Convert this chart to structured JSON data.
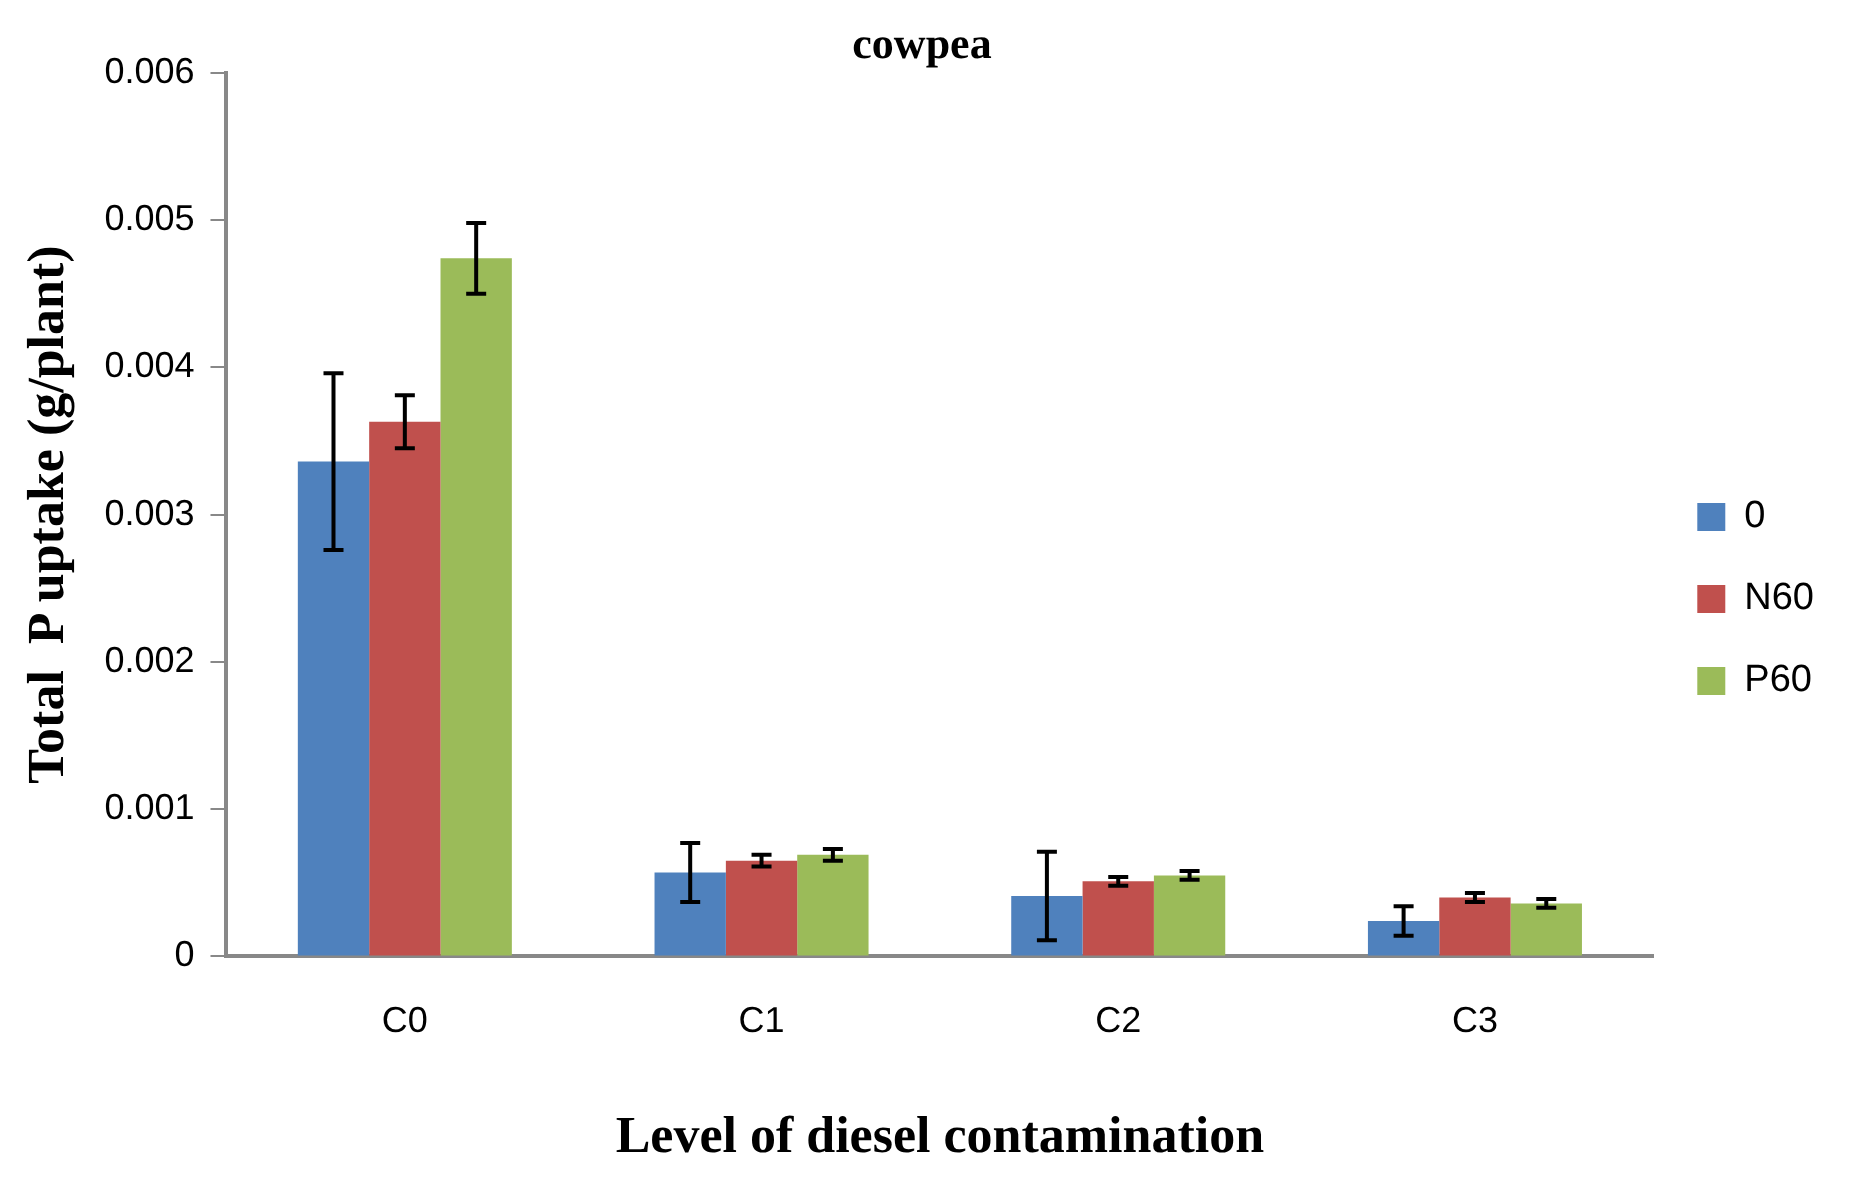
{
  "chart_data": {
    "type": "bar",
    "title": "cowpea",
    "xlabel": "Level of diesel contamination",
    "ylabel": "Total  P uptake (g/plant)",
    "categories": [
      "C0",
      "C1",
      "C2",
      "C3"
    ],
    "series": [
      {
        "name": "0",
        "color": "#4f81bd",
        "values": [
          0.00336,
          0.00057,
          0.00041,
          0.00024
        ],
        "errors": [
          0.0006,
          0.0002,
          0.0003,
          0.0001
        ]
      },
      {
        "name": "N60",
        "color": "#c0504d",
        "values": [
          0.00363,
          0.00065,
          0.00051,
          0.0004
        ],
        "errors": [
          0.00018,
          4e-05,
          3e-05,
          3e-05
        ]
      },
      {
        "name": "P60",
        "color": "#9bbb59",
        "values": [
          0.00474,
          0.00069,
          0.00055,
          0.00036
        ],
        "errors": [
          0.00024,
          4e-05,
          3e-05,
          3e-05
        ]
      }
    ],
    "ylim": [
      0,
      0.006
    ],
    "yticks": [
      0,
      0.001,
      0.002,
      0.003,
      0.004,
      0.005,
      0.006
    ],
    "grid": false,
    "legend": "right"
  }
}
